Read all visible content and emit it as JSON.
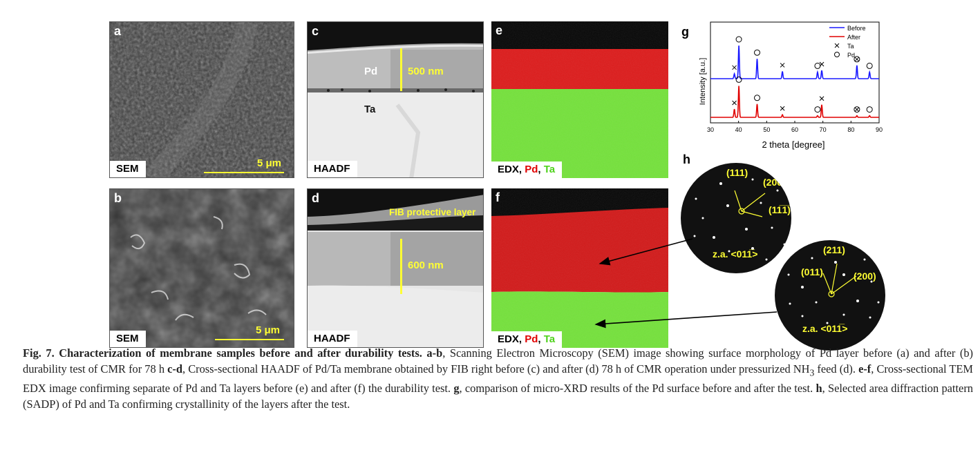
{
  "panels": {
    "a": {
      "label": "a",
      "tag": "SEM",
      "scale": "5 μm"
    },
    "b": {
      "label": "b",
      "tag": "SEM",
      "scale": "5 μm"
    },
    "c": {
      "label": "c",
      "tag": "HAADF",
      "pd": "Pd",
      "ta": "Ta",
      "thickness": "500 nm"
    },
    "d": {
      "label": "d",
      "tag": "HAADF",
      "fib": "FIB protective layer",
      "thickness": "600 nm"
    },
    "e": {
      "label": "e",
      "tag_prefix": "EDX, ",
      "tag_pd": "Pd",
      "tag_sep": ", ",
      "tag_ta": "Ta"
    },
    "f": {
      "label": "f",
      "tag_prefix": "EDX, ",
      "tag_pd": "Pd",
      "tag_sep": ", ",
      "tag_ta": "Ta"
    },
    "g": {
      "label": "g"
    },
    "h": {
      "label": "h",
      "pd_pattern": {
        "spot1": "(111)",
        "spot2": "(200)",
        "spot3": "(11̅1̅)",
        "za": "z.a. <011̅>"
      },
      "ta_pattern": {
        "spot1": "(211)",
        "spot2": "(011)",
        "spot3": "(200)",
        "za": "z.a. <011̅>"
      }
    }
  },
  "colors": {
    "before": "#1a1aff",
    "after": "#e00000",
    "pd_map": "#e01010",
    "ta_map": "#66e62a",
    "annotation": "#ffff33"
  },
  "chart_data": {
    "type": "line",
    "xlabel": "2 theta [degree]",
    "ylabel": "Intensity [a.u.]",
    "xlim": [
      30,
      90
    ],
    "xticks": [
      "30",
      "40",
      "50",
      "60",
      "70",
      "80",
      "90"
    ],
    "legend": {
      "placement": "top-right",
      "entries": [
        "Before",
        "After",
        "Ta",
        "Pd"
      ]
    },
    "series": [
      {
        "name": "Before",
        "peaks": [
          [
            38.5,
            0.15
          ],
          [
            40.1,
            1.0
          ],
          [
            46.6,
            0.6
          ],
          [
            55.6,
            0.22
          ],
          [
            68.1,
            0.2
          ],
          [
            69.6,
            0.25
          ],
          [
            82.1,
            0.4
          ],
          [
            86.6,
            0.2
          ]
        ]
      },
      {
        "name": "After",
        "peaks": [
          [
            38.5,
            0.25
          ],
          [
            40.1,
            0.95
          ],
          [
            46.6,
            0.4
          ],
          [
            55.6,
            0.08
          ],
          [
            68.1,
            0.05
          ],
          [
            69.6,
            0.38
          ],
          [
            82.1,
            0.05
          ],
          [
            86.6,
            0.05
          ]
        ]
      }
    ],
    "markers": {
      "Ta": [
        38.5,
        55.6,
        69.6
      ],
      "Pd": [
        40.1,
        46.6,
        68.1,
        86.6
      ],
      "both": [
        82.1
      ]
    }
  },
  "caption": {
    "fig": "Fig. 7.",
    "title": "Characterization of membrane samples before and after durability tests.",
    "ab_label": "a-b",
    "ab_text": ", Scanning Electron Microscopy (SEM) image showing surface morphology of Pd layer before (a) and after (b) durability test of CMR for 78 h ",
    "cd_label": "c-d",
    "cd_text": ", Cross-sectional HAADF of Pd/Ta membrane obtained by FIB right before (c) and after (d) 78 h of CMR operation under pressurized NH",
    "sub3": "3",
    "cd_text2": " feed (d). ",
    "ef_label": "e-f",
    "ef_text": ", Cross-sectional TEM EDX image confirming separate of Pd and Ta layers before (e) and after (f) the durability test. ",
    "g_label": "g",
    "g_text": ", comparison of micro-XRD results of the Pd surface before and after the test. ",
    "h_label": "h",
    "h_text": ", Selected area diffraction pattern (SADP) of Pd and Ta confirming crystallinity of the layers after the test."
  }
}
